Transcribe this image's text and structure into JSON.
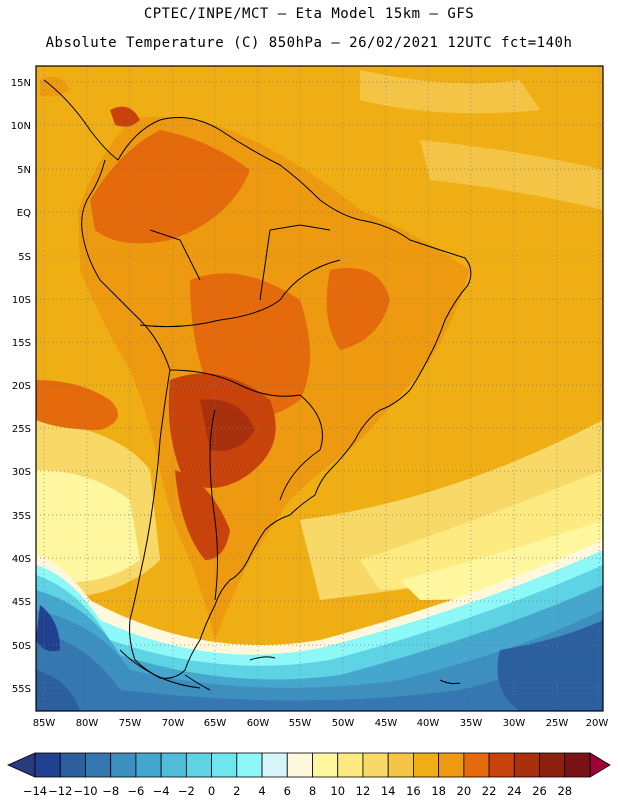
{
  "header": {
    "line1": "CPTEC/INPE/MCT –  Eta Model 15km – GFS",
    "line2": "Absolute Temperature (C) 850hPa – 26/02/2021 12UTC fct=140h"
  },
  "map": {
    "lat_labels": [
      "15N",
      "10N",
      "5N",
      "EQ",
      "5S",
      "10S",
      "15S",
      "20S",
      "25S",
      "30S",
      "35S",
      "40S",
      "45S",
      "50S",
      "55S"
    ],
    "lon_labels": [
      "85W",
      "80W",
      "75W",
      "70W",
      "65W",
      "60W",
      "55W",
      "50W",
      "45W",
      "40W",
      "35W",
      "30W",
      "25W",
      "20W"
    ]
  },
  "colorbar": {
    "labels": [
      "−14",
      "−12",
      "−10",
      "−8",
      "−6",
      "−4",
      "−2",
      "0",
      "2",
      "4",
      "6",
      "8",
      "10",
      "12",
      "14",
      "16",
      "18",
      "20",
      "22",
      "24",
      "26",
      "28"
    ],
    "colors": [
      "#21408f",
      "#2b5f9e",
      "#3577b0",
      "#3d8fc0",
      "#45a6ce",
      "#4fbcd8",
      "#5dd3e3",
      "#6ee6ee",
      "#8ef7f7",
      "#d6f5fa",
      "#fff8dd",
      "#fff7a0",
      "#fdea80",
      "#f8d968",
      "#f3c446",
      "#efaf14",
      "#ed9a10",
      "#e46a0b",
      "#c8420b",
      "#a8300c",
      "#8c210f",
      "#7a1315"
    ],
    "under_color": "#2a3a7f",
    "over_color": "#a00039"
  }
}
